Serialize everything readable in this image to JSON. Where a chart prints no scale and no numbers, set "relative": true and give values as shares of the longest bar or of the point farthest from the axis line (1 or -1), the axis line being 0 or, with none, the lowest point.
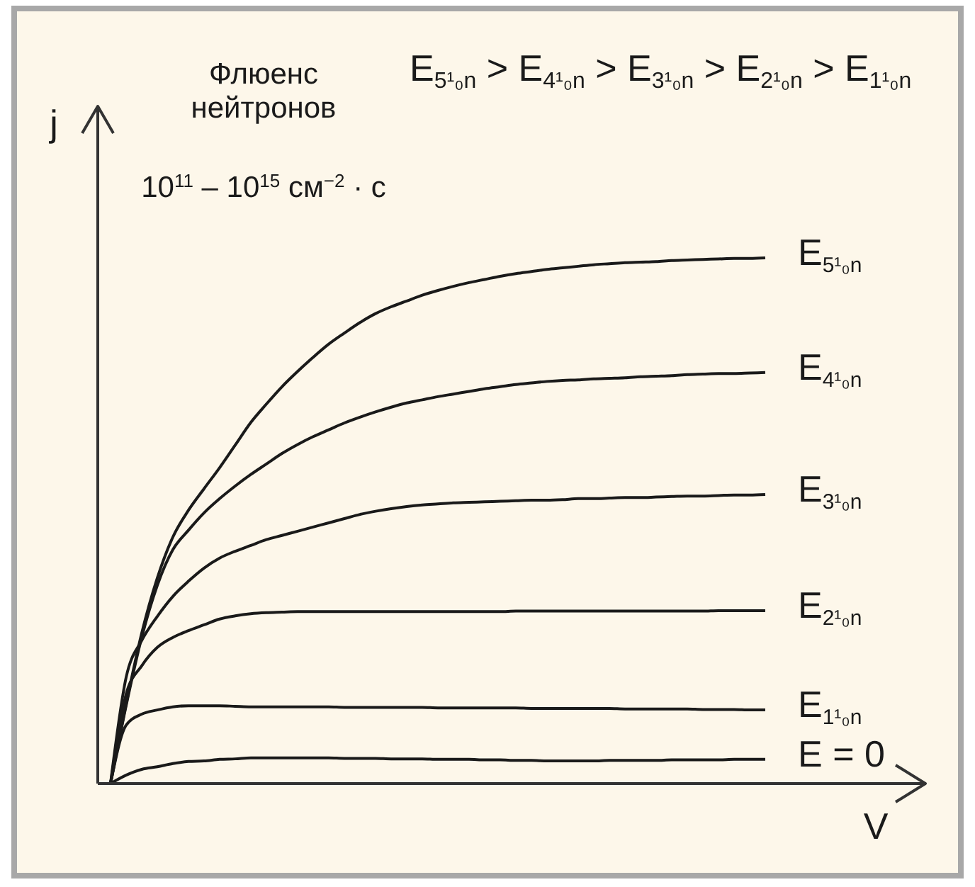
{
  "chart_data": {
    "type": "line",
    "relative": true,
    "xlabel": "V",
    "ylabel": "j",
    "annotations": [
      "Флюенс\nнейтронов\n10$^{11}$ – 10$^{15}$ см$^{−2}$ · с",
      "E$_{5¹₀n}$ > E$_{4¹₀n}$ > E$_{3¹₀n}$ > E$_{2¹₀n}$ > E$_{1¹₀n}$"
    ],
    "categories": [
      null,
      null,
      null,
      null,
      null,
      null,
      null,
      null,
      null,
      null,
      null,
      null,
      null,
      null,
      null,
      null,
      null,
      null,
      null,
      null,
      null,
      null,
      null,
      null,
      null,
      null,
      null,
      null,
      null,
      null,
      null,
      null,
      null,
      null,
      null,
      null,
      null,
      null,
      null,
      null,
      null,
      null,
      null
    ],
    "series": [
      {
        "name": "E$_{5¹₀n}$",
        "color": "#1a1a1a",
        "values": [
          0,
          0.151,
          0.286,
          0.391,
          0.469,
          0.52,
          0.561,
          0.601,
          0.644,
          0.687,
          0.722,
          0.755,
          0.784,
          0.811,
          0.836,
          0.857,
          0.877,
          0.894,
          0.907,
          0.918,
          0.929,
          0.938,
          0.946,
          0.953,
          0.959,
          0.965,
          0.97,
          0.974,
          0.978,
          0.981,
          0.984,
          0.987,
          0.989,
          0.991,
          0.992,
          0.993,
          0.995,
          0.996,
          0.997,
          0.998,
          0.999,
          0.999,
          1
        ]
      },
      {
        "name": "E$_{4¹₀n}$",
        "color": "#1a1a1a",
        "values": [
          0,
          0.148,
          0.278,
          0.377,
          0.445,
          0.482,
          0.515,
          0.542,
          0.566,
          0.588,
          0.608,
          0.628,
          0.645,
          0.66,
          0.673,
          0.686,
          0.697,
          0.707,
          0.716,
          0.724,
          0.73,
          0.736,
          0.741,
          0.746,
          0.751,
          0.755,
          0.759,
          0.762,
          0.765,
          0.767,
          0.768,
          0.77,
          0.771,
          0.772,
          0.774,
          0.775,
          0.776,
          0.778,
          0.779,
          0.78,
          0.78,
          0.781,
          0.782
        ]
      },
      {
        "name": "E$_{3¹₀n}$",
        "color": "#1a1a1a",
        "values": [
          0,
          0.202,
          0.272,
          0.318,
          0.356,
          0.385,
          0.41,
          0.429,
          0.442,
          0.453,
          0.464,
          0.472,
          0.48,
          0.488,
          0.496,
          0.504,
          0.512,
          0.518,
          0.523,
          0.527,
          0.53,
          0.532,
          0.534,
          0.535,
          0.536,
          0.537,
          0.538,
          0.539,
          0.539,
          0.54,
          0.542,
          0.542,
          0.543,
          0.544,
          0.544,
          0.545,
          0.546,
          0.547,
          0.547,
          0.548,
          0.549,
          0.549,
          0.55
        ]
      },
      {
        "name": "E$_{2¹₀n}$",
        "color": "#1a1a1a",
        "values": [
          0,
          0.17,
          0.224,
          0.259,
          0.278,
          0.291,
          0.302,
          0.313,
          0.319,
          0.323,
          0.325,
          0.326,
          0.327,
          0.327,
          0.327,
          0.327,
          0.327,
          0.327,
          0.327,
          0.327,
          0.327,
          0.327,
          0.327,
          0.327,
          0.327,
          0.327,
          0.328,
          0.328,
          0.328,
          0.328,
          0.328,
          0.328,
          0.328,
          0.328,
          0.328,
          0.328,
          0.328,
          0.328,
          0.328,
          0.329,
          0.329,
          0.329,
          0.329
        ]
      },
      {
        "name": "E$_{1¹₀n}$",
        "color": "#1a1a1a",
        "values": [
          0,
          0.111,
          0.132,
          0.14,
          0.146,
          0.148,
          0.148,
          0.148,
          0.147,
          0.146,
          0.146,
          0.146,
          0.146,
          0.146,
          0.146,
          0.145,
          0.145,
          0.145,
          0.145,
          0.145,
          0.145,
          0.144,
          0.144,
          0.144,
          0.144,
          0.144,
          0.144,
          0.143,
          0.143,
          0.143,
          0.143,
          0.143,
          0.143,
          0.142,
          0.142,
          0.142,
          0.142,
          0.142,
          0.141,
          0.141,
          0.141,
          0.14,
          0.14
        ]
      },
      {
        "name": "E = 0",
        "color": "#1a1a1a",
        "values": [
          0,
          0.016,
          0.027,
          0.032,
          0.038,
          0.042,
          0.043,
          0.046,
          0.047,
          0.049,
          0.049,
          0.049,
          0.049,
          0.049,
          0.049,
          0.048,
          0.048,
          0.048,
          0.047,
          0.047,
          0.047,
          0.046,
          0.046,
          0.046,
          0.045,
          0.045,
          0.044,
          0.044,
          0.043,
          0.043,
          0.043,
          0.043,
          0.044,
          0.044,
          0.044,
          0.044,
          0.045,
          0.045,
          0.045,
          0.045,
          0.046,
          0.046,
          0.046
        ]
      }
    ]
  }
}
